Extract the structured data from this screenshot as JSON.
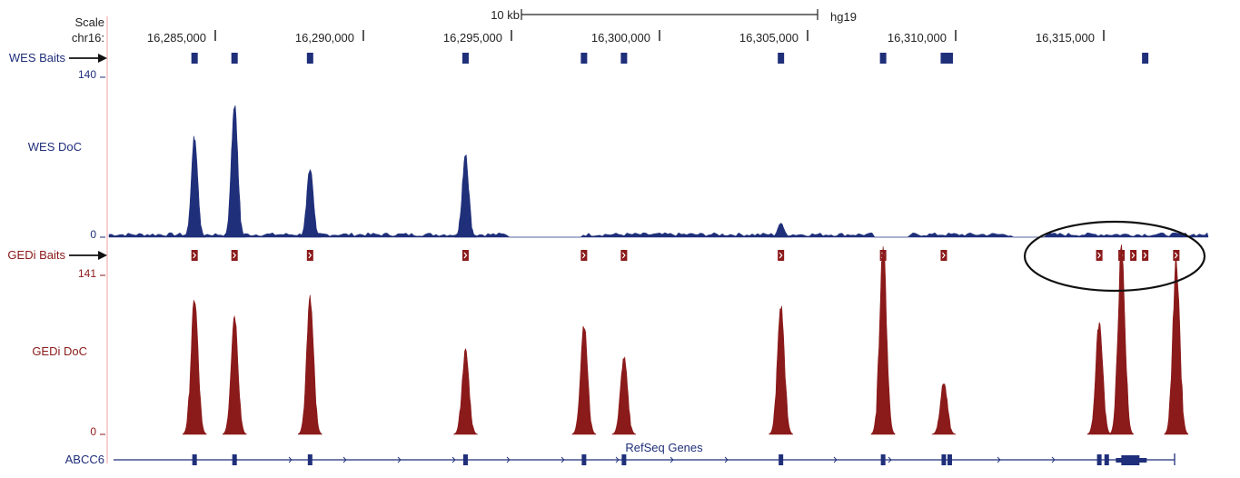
{
  "header": {
    "scale_label": "Scale",
    "chrom_label": "chr16:",
    "scalebar_label": "10 kb",
    "assembly": "hg19",
    "positions": [
      "16,285,000",
      "16,290,000",
      "16,295,000",
      "16,300,000",
      "16,305,000",
      "16,310,000",
      "16,315,000"
    ]
  },
  "tracks": {
    "wes_baits": {
      "label": "WES Baits",
      "color": "#1f2f7a"
    },
    "wes_doc": {
      "label": "WES DoC",
      "ymax": "140",
      "ymin": "0",
      "color": "#1f2f7a"
    },
    "gedi_baits": {
      "label": "GEDi Baits",
      "color": "#8b1a1a"
    },
    "gedi_doc": {
      "label": "GEDi DoC",
      "ymax": "141",
      "ymin": "0",
      "color": "#8b1a1a"
    },
    "refseq": {
      "title": "RefSeq Genes",
      "gene": "ABCC6",
      "color": "#1f2f7a"
    }
  },
  "chart_data": {
    "type": "area",
    "x_units": "chr16 position (bp)",
    "xlim": [
      16283000,
      16318000
    ],
    "wes_baits": [
      16284300,
      16285650,
      16288200,
      16293450,
      16297450,
      16298800,
      16304100,
      16307550,
      16309600,
      16309800,
      16316400
    ],
    "gedi_baits": [
      16284300,
      16285650,
      16288200,
      16293450,
      16297450,
      16298800,
      16304100,
      16307550,
      16309600,
      16314850,
      16315600,
      16316000,
      16316400,
      16317450
    ],
    "wes_doc_peaks": [
      {
        "x": 16284300,
        "y": 88
      },
      {
        "x": 16285650,
        "y": 116
      },
      {
        "x": 16288200,
        "y": 60
      },
      {
        "x": 16293450,
        "y": 72
      },
      {
        "x": 16304100,
        "y": 12
      }
    ],
    "gedi_doc_peaks": [
      {
        "x": 16284300,
        "y": 120
      },
      {
        "x": 16285650,
        "y": 106
      },
      {
        "x": 16288200,
        "y": 120
      },
      {
        "x": 16293450,
        "y": 74
      },
      {
        "x": 16297450,
        "y": 98
      },
      {
        "x": 16298800,
        "y": 68
      },
      {
        "x": 16304100,
        "y": 114
      },
      {
        "x": 16307550,
        "y": 167
      },
      {
        "x": 16309600,
        "y": 46
      },
      {
        "x": 16314850,
        "y": 100
      },
      {
        "x": 16315600,
        "y": 164
      },
      {
        "x": 16317450,
        "y": 153
      }
    ],
    "wes_ylim": [
      0,
      140
    ],
    "gedi_ylim": [
      0,
      141
    ]
  }
}
